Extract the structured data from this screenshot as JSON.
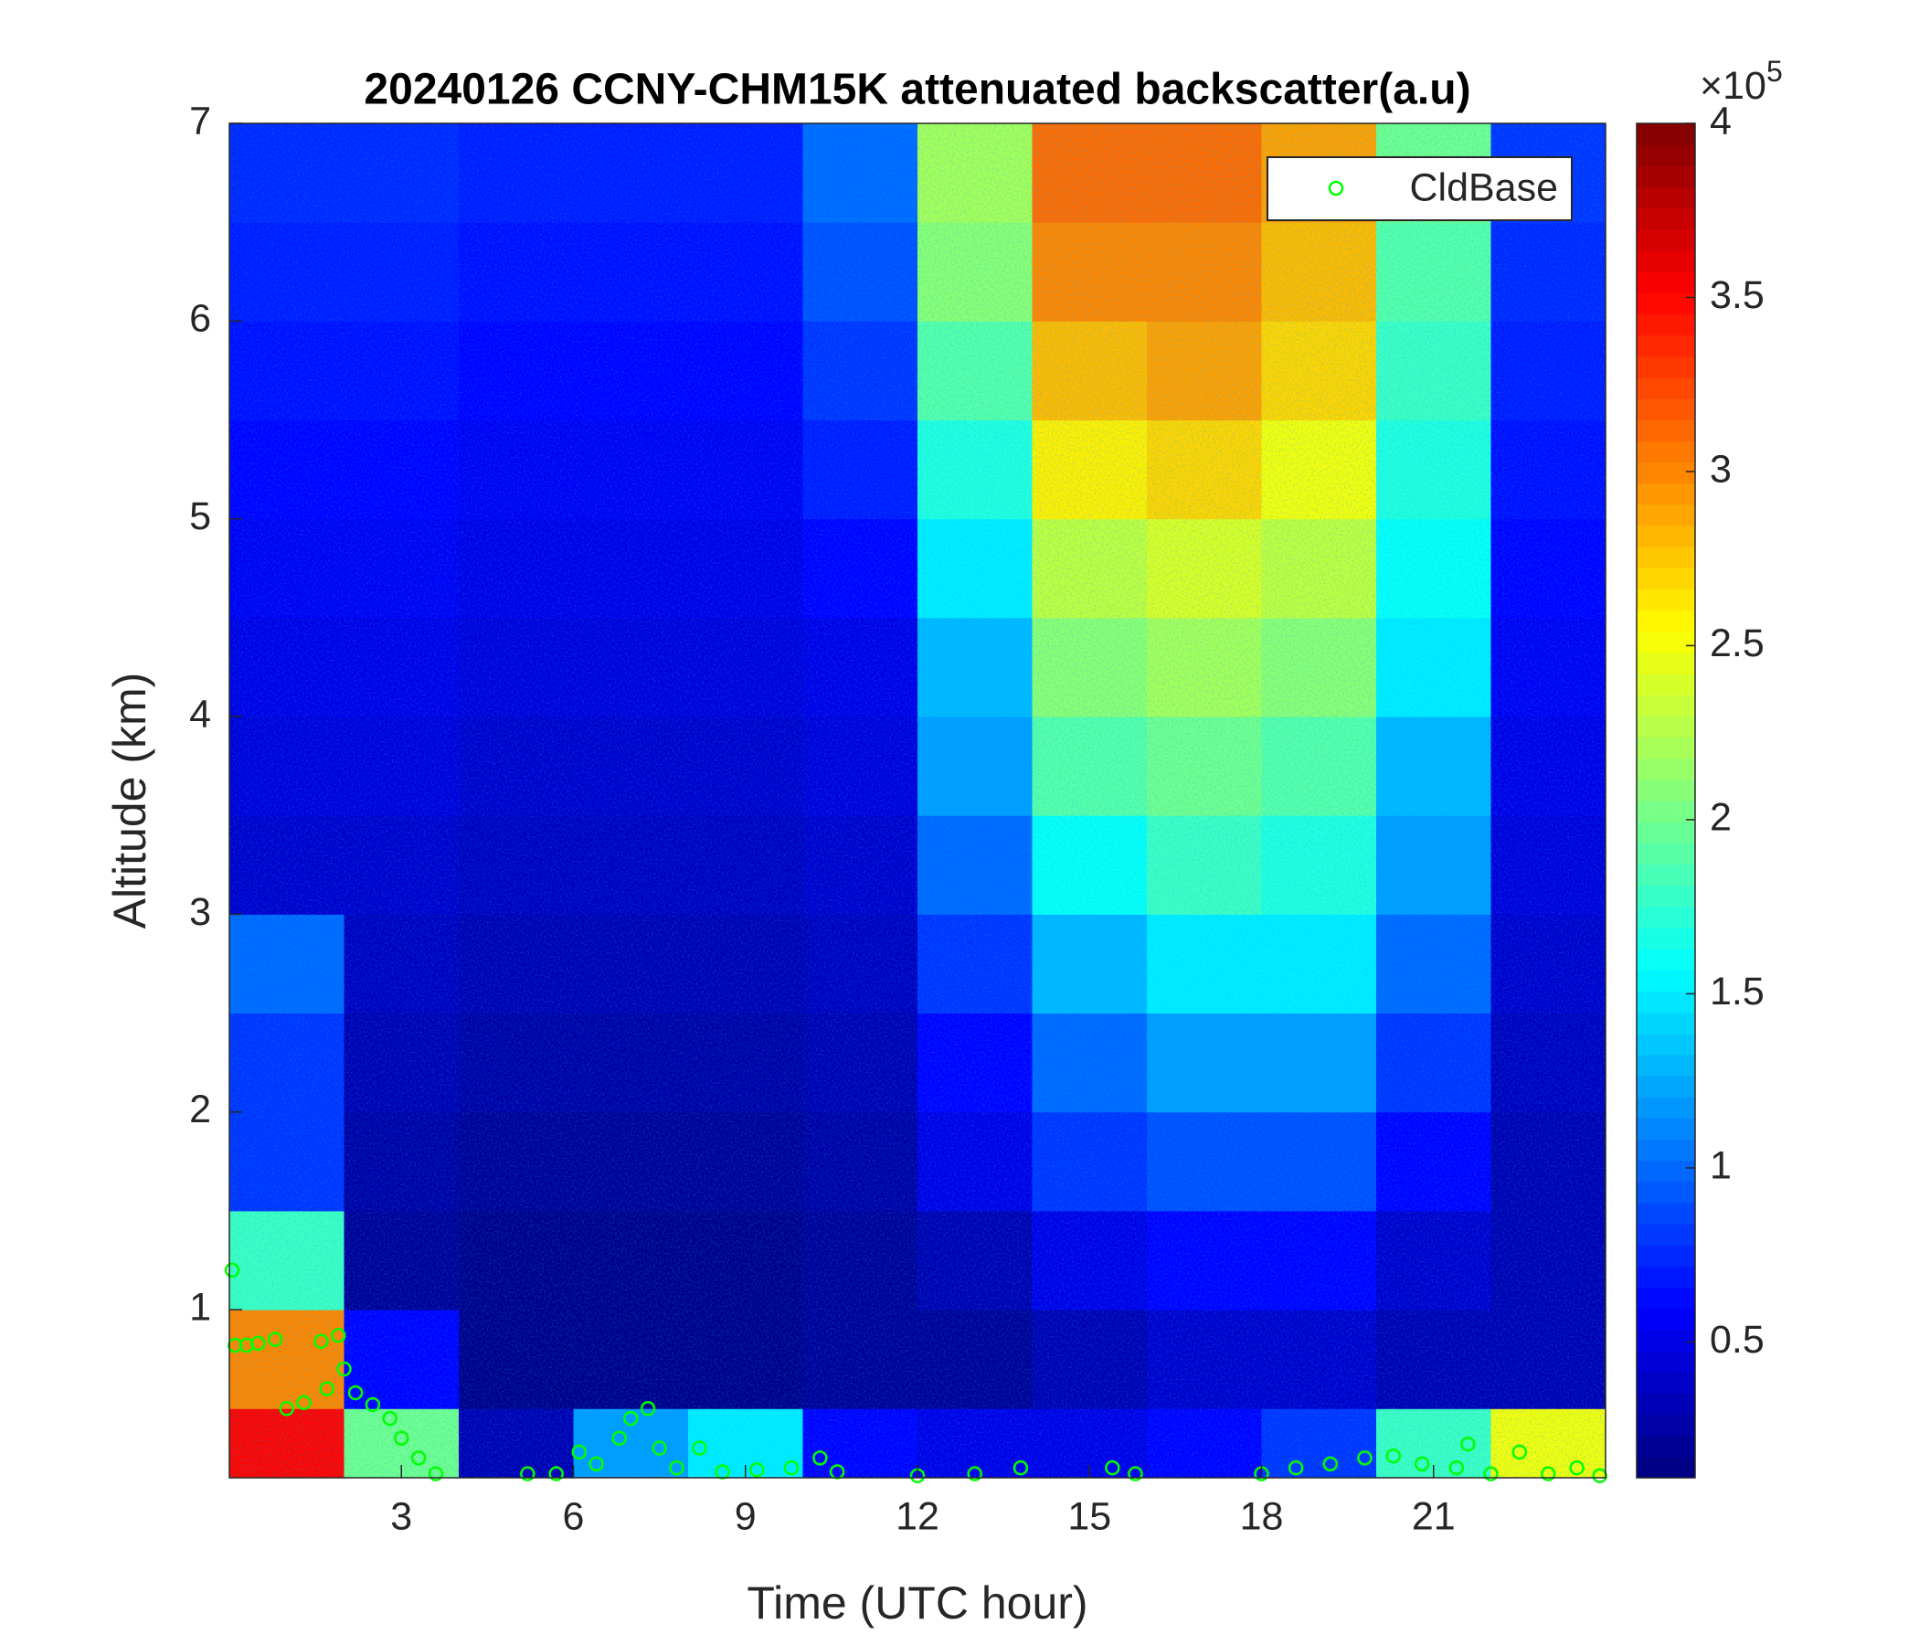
{
  "chart_data": {
    "type": "heatmap",
    "title": "20240126 CCNY-CHM15K attenuated backscatter(a.u)",
    "x_label": "Time (UTC hour)",
    "y_label": "Altitude (km)",
    "xlim": [
      0,
      24
    ],
    "ylim": [
      0.15,
      7
    ],
    "xticks": [
      3,
      6,
      9,
      12,
      15,
      18,
      21
    ],
    "yticks": [
      1,
      2,
      3,
      4,
      5,
      6,
      7
    ],
    "colormap": "jet",
    "x_bins": [
      0,
      2,
      4,
      6,
      8,
      10,
      12,
      14,
      16,
      18,
      20,
      22,
      24
    ],
    "y_bins": [
      0.15,
      0.5,
      1,
      1.5,
      2,
      2.5,
      3,
      3.5,
      4,
      4.5,
      5,
      5.5,
      6,
      6.5,
      7
    ],
    "z": [
      [
        3.5,
        2.0,
        0.3,
        1.2,
        1.5,
        0.6,
        0.5,
        0.5,
        0.6,
        0.8,
        1.8,
        2.5
      ],
      [
        3.0,
        0.6,
        0.15,
        0.15,
        0.15,
        0.2,
        0.2,
        0.3,
        0.4,
        0.4,
        0.3,
        0.3
      ],
      [
        1.8,
        0.2,
        0.15,
        0.15,
        0.15,
        0.2,
        0.3,
        0.5,
        0.6,
        0.6,
        0.4,
        0.3
      ],
      [
        0.8,
        0.25,
        0.2,
        0.2,
        0.2,
        0.25,
        0.5,
        0.8,
        0.9,
        0.9,
        0.6,
        0.3
      ],
      [
        0.8,
        0.3,
        0.25,
        0.25,
        0.25,
        0.3,
        0.6,
        1.0,
        1.2,
        1.2,
        0.8,
        0.35
      ],
      [
        1.0,
        0.35,
        0.3,
        0.3,
        0.3,
        0.35,
        0.8,
        1.3,
        1.5,
        1.5,
        1.0,
        0.4
      ],
      [
        0.4,
        0.4,
        0.35,
        0.35,
        0.35,
        0.4,
        1.0,
        1.6,
        1.8,
        1.7,
        1.2,
        0.45
      ],
      [
        0.45,
        0.45,
        0.4,
        0.4,
        0.4,
        0.45,
        1.2,
        1.9,
        2.0,
        1.9,
        1.3,
        0.5
      ],
      [
        0.5,
        0.5,
        0.45,
        0.45,
        0.45,
        0.5,
        1.3,
        2.1,
        2.2,
        2.1,
        1.5,
        0.55
      ],
      [
        0.55,
        0.55,
        0.5,
        0.5,
        0.5,
        0.6,
        1.5,
        2.3,
        2.4,
        2.3,
        1.6,
        0.6
      ],
      [
        0.6,
        0.6,
        0.55,
        0.55,
        0.55,
        0.7,
        1.7,
        2.6,
        2.7,
        2.5,
        1.7,
        0.65
      ],
      [
        0.65,
        0.65,
        0.6,
        0.6,
        0.6,
        0.8,
        1.9,
        2.8,
        2.9,
        2.7,
        1.8,
        0.7
      ],
      [
        0.7,
        0.7,
        0.65,
        0.65,
        0.65,
        0.9,
        2.1,
        3.0,
        3.0,
        2.8,
        1.9,
        0.75
      ],
      [
        0.75,
        0.75,
        0.7,
        0.7,
        0.7,
        1.0,
        2.2,
        3.1,
        3.1,
        2.9,
        2.0,
        0.8
      ]
    ],
    "colorbar": {
      "clim": [
        0.11,
        4
      ],
      "ticks": [
        0.5,
        1,
        1.5,
        2,
        2.5,
        3,
        3.5,
        4
      ],
      "multiplier": "×10",
      "exponent": "5"
    },
    "series": [
      {
        "name": "CldBase",
        "color": "#00ff00",
        "marker": "o",
        "x": [
          0.05,
          0.1,
          0.3,
          0.5,
          0.8,
          1.0,
          1.3,
          1.6,
          1.9,
          1.7,
          2.0,
          2.2,
          2.5,
          2.8,
          3.0,
          3.3,
          3.6,
          5.2,
          5.7,
          6.1,
          6.4,
          6.8,
          7.0,
          7.3,
          7.5,
          7.8,
          8.2,
          8.6,
          9.2,
          9.8,
          10.3,
          10.6,
          12.0,
          13.0,
          13.8,
          15.4,
          15.8,
          18.0,
          18.6,
          19.2,
          19.8,
          20.3,
          20.8,
          21.4,
          21.6,
          22.0,
          22.5,
          23.0,
          23.5,
          23.9
        ],
        "y": [
          1.2,
          0.82,
          0.82,
          0.83,
          0.85,
          0.5,
          0.53,
          0.84,
          0.87,
          0.6,
          0.7,
          0.58,
          0.52,
          0.45,
          0.35,
          0.25,
          0.17,
          0.17,
          0.17,
          0.28,
          0.22,
          0.35,
          0.45,
          0.5,
          0.3,
          0.2,
          0.3,
          0.18,
          0.19,
          0.2,
          0.25,
          0.18,
          0.16,
          0.17,
          0.2,
          0.2,
          0.17,
          0.17,
          0.2,
          0.22,
          0.25,
          0.26,
          0.22,
          0.2,
          0.32,
          0.17,
          0.28,
          0.17,
          0.2,
          0.16
        ]
      }
    ],
    "legend": "upper right",
    "grid": false
  }
}
